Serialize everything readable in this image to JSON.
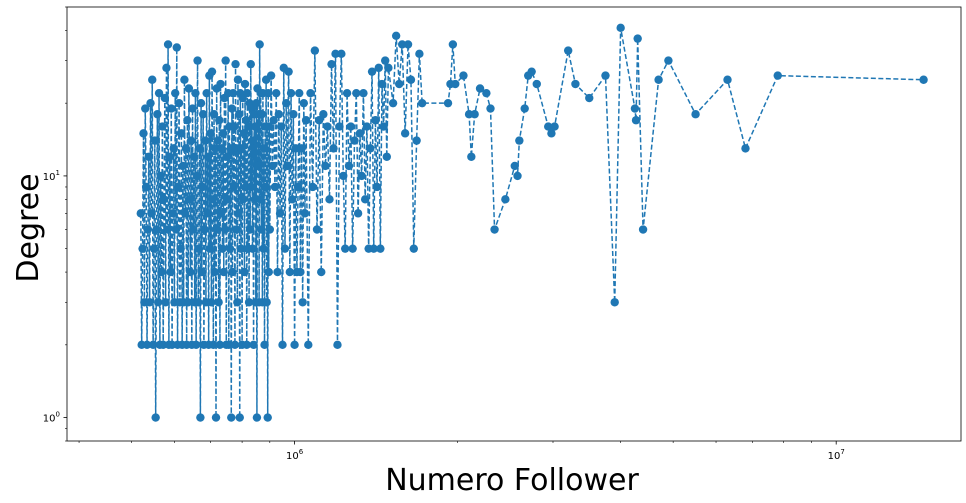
{
  "chart_data": {
    "type": "line",
    "title": "",
    "xlabel": "Numero Follower",
    "ylabel": "Degree",
    "xscale": "log",
    "yscale": "log",
    "xlim": [
      380000,
      17000000
    ],
    "ylim": [
      0.8,
      50
    ],
    "grid": false,
    "legend": "none",
    "line_style": "dashed",
    "marker": "circle",
    "color": "#1f77b4",
    "xticks": [
      {
        "value": 1000000,
        "base": "10",
        "exp": "6"
      },
      {
        "value": 10000000,
        "base": "10",
        "exp": "7"
      }
    ],
    "yticks": [
      {
        "value": 1,
        "base": "10",
        "exp": "0"
      },
      {
        "value": 10,
        "base": "10",
        "exp": "1"
      }
    ],
    "series": [
      {
        "points": [
          [
            520000,
            7
          ],
          [
            522000,
            2
          ],
          [
            524000,
            5
          ],
          [
            526000,
            15
          ],
          [
            528000,
            3
          ],
          [
            530000,
            19
          ],
          [
            532000,
            9
          ],
          [
            534000,
            2
          ],
          [
            536000,
            6
          ],
          [
            538000,
            12
          ],
          [
            540000,
            3
          ],
          [
            542000,
            20
          ],
          [
            544000,
            7
          ],
          [
            546000,
            25
          ],
          [
            548000,
            2
          ],
          [
            550000,
            5
          ],
          [
            552000,
            14
          ],
          [
            554000,
            1
          ],
          [
            556000,
            6
          ],
          [
            558000,
            18
          ],
          [
            560000,
            3
          ],
          [
            562000,
            22
          ],
          [
            564000,
            2
          ],
          [
            566000,
            10
          ],
          [
            568000,
            4
          ],
          [
            570000,
            16
          ],
          [
            572000,
            2
          ],
          [
            574000,
            8
          ],
          [
            576000,
            21
          ],
          [
            578000,
            3
          ],
          [
            580000,
            28
          ],
          [
            582000,
            6
          ],
          [
            584000,
            35
          ],
          [
            586000,
            2
          ],
          [
            588000,
            12
          ],
          [
            590000,
            4
          ],
          [
            592000,
            19
          ],
          [
            594000,
            2
          ],
          [
            596000,
            7
          ],
          [
            598000,
            13
          ],
          [
            600000,
            3
          ],
          [
            602000,
            22
          ],
          [
            604000,
            6
          ],
          [
            606000,
            34
          ],
          [
            608000,
            2
          ],
          [
            610000,
            9
          ],
          [
            612000,
            20
          ],
          [
            614000,
            3
          ],
          [
            616000,
            5
          ],
          [
            618000,
            15
          ],
          [
            620000,
            2
          ],
          [
            622000,
            11
          ],
          [
            624000,
            3
          ],
          [
            626000,
            25
          ],
          [
            628000,
            7
          ],
          [
            630000,
            13
          ],
          [
            632000,
            2
          ],
          [
            634000,
            17
          ],
          [
            636000,
            3
          ],
          [
            638000,
            23
          ],
          [
            640000,
            8
          ],
          [
            642000,
            4
          ],
          [
            644000,
            14
          ],
          [
            646000,
            2
          ],
          [
            648000,
            19
          ],
          [
            650000,
            6
          ],
          [
            652000,
            12
          ],
          [
            654000,
            3
          ],
          [
            656000,
            22
          ],
          [
            658000,
            2
          ],
          [
            660000,
            10
          ],
          [
            662000,
            30
          ],
          [
            664000,
            3
          ],
          [
            666000,
            5
          ],
          [
            668000,
            13
          ],
          [
            670000,
            1
          ],
          [
            672000,
            20
          ],
          [
            674000,
            4
          ],
          [
            676000,
            9
          ],
          [
            678000,
            18
          ],
          [
            680000,
            2
          ],
          [
            682000,
            6
          ],
          [
            684000,
            14
          ],
          [
            686000,
            3
          ],
          [
            688000,
            22
          ],
          [
            690000,
            7
          ],
          [
            692000,
            12
          ],
          [
            694000,
            2
          ],
          [
            696000,
            26
          ],
          [
            698000,
            5
          ],
          [
            700000,
            15
          ],
          [
            702000,
            3
          ],
          [
            704000,
            27
          ],
          [
            706000,
            8
          ],
          [
            708000,
            2
          ],
          [
            710000,
            18
          ],
          [
            712000,
            4
          ],
          [
            714000,
            13
          ],
          [
            716000,
            1
          ],
          [
            718000,
            23
          ],
          [
            720000,
            6
          ],
          [
            722000,
            14
          ],
          [
            724000,
            3
          ],
          [
            726000,
            17
          ],
          [
            728000,
            2
          ],
          [
            730000,
            24
          ],
          [
            732000,
            7
          ],
          [
            734000,
            13
          ],
          [
            736000,
            5
          ],
          [
            738000,
            15
          ],
          [
            740000,
            4
          ],
          [
            742000,
            21
          ],
          [
            744000,
            6
          ],
          [
            746000,
            30
          ],
          [
            748000,
            2
          ],
          [
            750000,
            12
          ],
          [
            752000,
            8
          ],
          [
            754000,
            22
          ],
          [
            756000,
            2
          ],
          [
            758000,
            16
          ],
          [
            760000,
            5
          ],
          [
            762000,
            13
          ],
          [
            764000,
            1
          ],
          [
            766000,
            19
          ],
          [
            768000,
            4
          ],
          [
            770000,
            22
          ],
          [
            772000,
            9
          ],
          [
            774000,
            16
          ],
          [
            776000,
            2
          ],
          [
            778000,
            29
          ],
          [
            780000,
            6
          ],
          [
            782000,
            13
          ],
          [
            784000,
            3
          ],
          [
            786000,
            25
          ],
          [
            788000,
            7
          ],
          [
            790000,
            18
          ],
          [
            792000,
            1
          ],
          [
            794000,
            22
          ],
          [
            796000,
            5
          ],
          [
            798000,
            13
          ],
          [
            800000,
            2
          ],
          [
            802000,
            21
          ],
          [
            804000,
            8
          ],
          [
            806000,
            15
          ],
          [
            808000,
            4
          ],
          [
            810000,
            24
          ],
          [
            812000,
            9
          ],
          [
            814000,
            17
          ],
          [
            816000,
            2
          ],
          [
            818000,
            22
          ],
          [
            820000,
            5
          ],
          [
            822000,
            16
          ],
          [
            824000,
            3
          ],
          [
            826000,
            20
          ],
          [
            828000,
            6
          ],
          [
            830000,
            29
          ],
          [
            832000,
            9
          ],
          [
            834000,
            19
          ],
          [
            836000,
            5
          ],
          [
            838000,
            14
          ],
          [
            840000,
            2
          ],
          [
            842000,
            18
          ],
          [
            844000,
            8
          ],
          [
            846000,
            16
          ],
          [
            848000,
            3
          ],
          [
            850000,
            20
          ],
          [
            852000,
            1
          ],
          [
            854000,
            23
          ],
          [
            856000,
            11
          ],
          [
            858000,
            18
          ],
          [
            860000,
            3
          ],
          [
            862000,
            35
          ],
          [
            864000,
            8
          ],
          [
            866000,
            22
          ],
          [
            868000,
            6
          ],
          [
            870000,
            18
          ],
          [
            872000,
            3
          ],
          [
            874000,
            22
          ],
          [
            876000,
            5
          ],
          [
            878000,
            13
          ],
          [
            880000,
            2
          ],
          [
            882000,
            16
          ],
          [
            884000,
            9
          ],
          [
            886000,
            25
          ],
          [
            888000,
            3
          ],
          [
            890000,
            16
          ],
          [
            892000,
            1
          ],
          [
            894000,
            22
          ],
          [
            896000,
            4
          ],
          [
            898000,
            16
          ],
          [
            900000,
            6
          ],
          [
            905000,
            26
          ],
          [
            910000,
            11
          ],
          [
            915000,
            17
          ],
          [
            920000,
            9
          ],
          [
            925000,
            22
          ],
          [
            930000,
            4
          ],
          [
            935000,
            18
          ],
          [
            940000,
            7
          ],
          [
            945000,
            16
          ],
          [
            950000,
            2
          ],
          [
            955000,
            28
          ],
          [
            960000,
            5
          ],
          [
            965000,
            20
          ],
          [
            970000,
            11
          ],
          [
            975000,
            27
          ],
          [
            980000,
            4
          ],
          [
            985000,
            22
          ],
          [
            990000,
            8
          ],
          [
            995000,
            18
          ],
          [
            1000000,
            2
          ],
          [
            1005000,
            13
          ],
          [
            1010000,
            4
          ],
          [
            1015000,
            9
          ],
          [
            1020000,
            22
          ],
          [
            1025000,
            4
          ],
          [
            1030000,
            13
          ],
          [
            1035000,
            3
          ],
          [
            1040000,
            20
          ],
          [
            1045000,
            7
          ],
          [
            1050000,
            17
          ],
          [
            1060000,
            2
          ],
          [
            1070000,
            22
          ],
          [
            1080000,
            9
          ],
          [
            1090000,
            33
          ],
          [
            1100000,
            6
          ],
          [
            1110000,
            17
          ],
          [
            1120000,
            4
          ],
          [
            1130000,
            18
          ],
          [
            1140000,
            11
          ],
          [
            1150000,
            16
          ],
          [
            1160000,
            8
          ],
          [
            1170000,
            29
          ],
          [
            1180000,
            13
          ],
          [
            1190000,
            32
          ],
          [
            1200000,
            2
          ],
          [
            1210000,
            16
          ],
          [
            1220000,
            32
          ],
          [
            1230000,
            10
          ],
          [
            1240000,
            5
          ],
          [
            1250000,
            22
          ],
          [
            1260000,
            11
          ],
          [
            1270000,
            16
          ],
          [
            1280000,
            5
          ],
          [
            1290000,
            14
          ],
          [
            1300000,
            22
          ],
          [
            1310000,
            7
          ],
          [
            1320000,
            15
          ],
          [
            1330000,
            10
          ],
          [
            1340000,
            22
          ],
          [
            1350000,
            8
          ],
          [
            1360000,
            16
          ],
          [
            1370000,
            5
          ],
          [
            1380000,
            13
          ],
          [
            1390000,
            27
          ],
          [
            1400000,
            5
          ],
          [
            1410000,
            17
          ],
          [
            1420000,
            9
          ],
          [
            1430000,
            28
          ],
          [
            1440000,
            5
          ],
          [
            1450000,
            24
          ],
          [
            1460000,
            16
          ],
          [
            1470000,
            30
          ],
          [
            1480000,
            12
          ],
          [
            1490000,
            28
          ],
          [
            1520000,
            20
          ],
          [
            1540000,
            38
          ],
          [
            1560000,
            24
          ],
          [
            1580000,
            35
          ],
          [
            1600000,
            15
          ],
          [
            1620000,
            35
          ],
          [
            1640000,
            25
          ],
          [
            1660000,
            5
          ],
          [
            1680000,
            14
          ],
          [
            1700000,
            32
          ],
          [
            1720000,
            20
          ],
          [
            1920000,
            20
          ],
          [
            1940000,
            24
          ],
          [
            1960000,
            35
          ],
          [
            1980000,
            24
          ],
          [
            2050000,
            26
          ],
          [
            2100000,
            18
          ],
          [
            2120000,
            12
          ],
          [
            2150000,
            18
          ],
          [
            2200000,
            23
          ],
          [
            2260000,
            22
          ],
          [
            2300000,
            19
          ],
          [
            2340000,
            6
          ],
          [
            2450000,
            8
          ],
          [
            2550000,
            11
          ],
          [
            2580000,
            10
          ],
          [
            2600000,
            14
          ],
          [
            2660000,
            19
          ],
          [
            2700000,
            26
          ],
          [
            2740000,
            27
          ],
          [
            2800000,
            24
          ],
          [
            2940000,
            16
          ],
          [
            2980000,
            15
          ],
          [
            3020000,
            16
          ],
          [
            3200000,
            33
          ],
          [
            3300000,
            24
          ],
          [
            3500000,
            21
          ],
          [
            3750000,
            26
          ],
          [
            3900000,
            3
          ],
          [
            4000000,
            41
          ],
          [
            4250000,
            19
          ],
          [
            4270000,
            17
          ],
          [
            4300000,
            37
          ],
          [
            4400000,
            6
          ],
          [
            4700000,
            25
          ],
          [
            4900000,
            30
          ],
          [
            5500000,
            18
          ],
          [
            6300000,
            25
          ],
          [
            6800000,
            13
          ],
          [
            7800000,
            26
          ],
          [
            14500000,
            25
          ]
        ]
      }
    ]
  }
}
